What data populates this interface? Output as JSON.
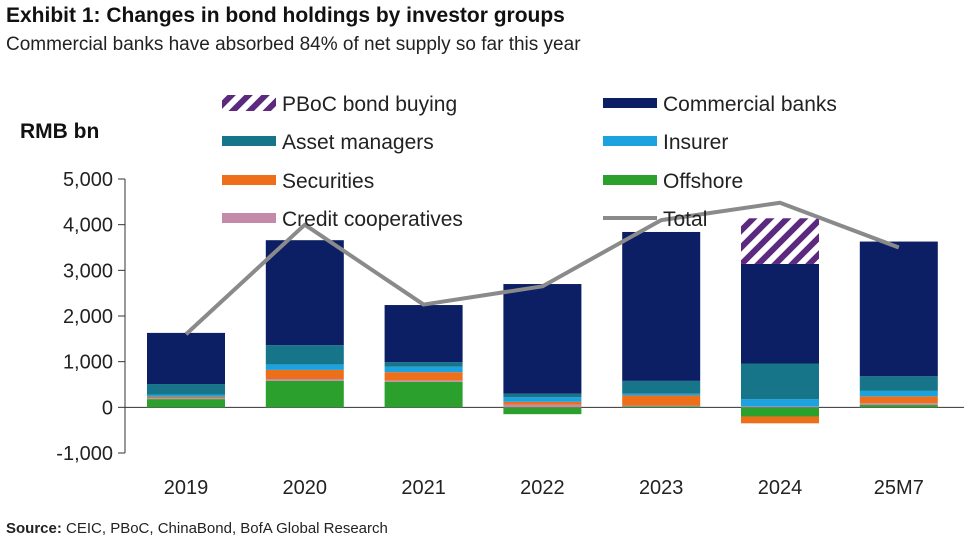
{
  "title": "Exhibit 1:  Changes in bond holdings by investor groups",
  "subtitle": "Commercial banks have absorbed 84% of net supply so far this year",
  "source_label": "Source:",
  "source_text": "CEIC, PBoC, ChinaBond, BofA Global Research",
  "chart_data": {
    "type": "bar",
    "stacked": true,
    "ylabel": "RMB bn",
    "ylim": [
      -1000,
      5000
    ],
    "yticks": [
      -1000,
      0,
      1000,
      2000,
      3000,
      4000,
      5000
    ],
    "ytick_labels": [
      "-1,000",
      "0",
      "1,000",
      "2,000",
      "3,000",
      "4,000",
      "5,000"
    ],
    "categories": [
      "2019",
      "2020",
      "2021",
      "2022",
      "2023",
      "2024",
      "25M7"
    ],
    "series": [
      {
        "name": "Offshore",
        "color": "#2ca02c",
        "values": [
          180,
          580,
          560,
          -150,
          20,
          -200,
          50
        ]
      },
      {
        "name": "Credit cooperatives",
        "color": "#c48aa9",
        "values": [
          20,
          40,
          30,
          60,
          20,
          20,
          40
        ]
      },
      {
        "name": "Securities",
        "color": "#ee6f1a",
        "values": [
          30,
          200,
          180,
          60,
          220,
          -150,
          150
        ]
      },
      {
        "name": "Insurer",
        "color": "#1da2e0",
        "values": [
          50,
          120,
          120,
          100,
          40,
          160,
          120
        ]
      },
      {
        "name": "Asset managers",
        "color": "#17758a",
        "values": [
          230,
          420,
          100,
          80,
          280,
          780,
          320
        ]
      },
      {
        "name": "Commercial banks",
        "color": "#0c1e64",
        "values": [
          1120,
          2300,
          1250,
          2400,
          3260,
          2180,
          2950
        ]
      },
      {
        "name": "PBoC bond buying",
        "color": "#5b2a7e",
        "pattern": "hatch",
        "values": [
          0,
          0,
          0,
          0,
          0,
          1000,
          0
        ]
      }
    ],
    "total": {
      "name": "Total",
      "color": "#8a8a8a",
      "values": [
        1600,
        4000,
        2250,
        2650,
        4100,
        4480,
        3500
      ]
    },
    "legend": {
      "placement": "top",
      "entries": [
        "PBoC bond buying",
        "Commercial banks",
        "Asset managers",
        "Insurer",
        "Securities",
        "Offshore",
        "Credit cooperatives",
        "Total"
      ]
    }
  }
}
